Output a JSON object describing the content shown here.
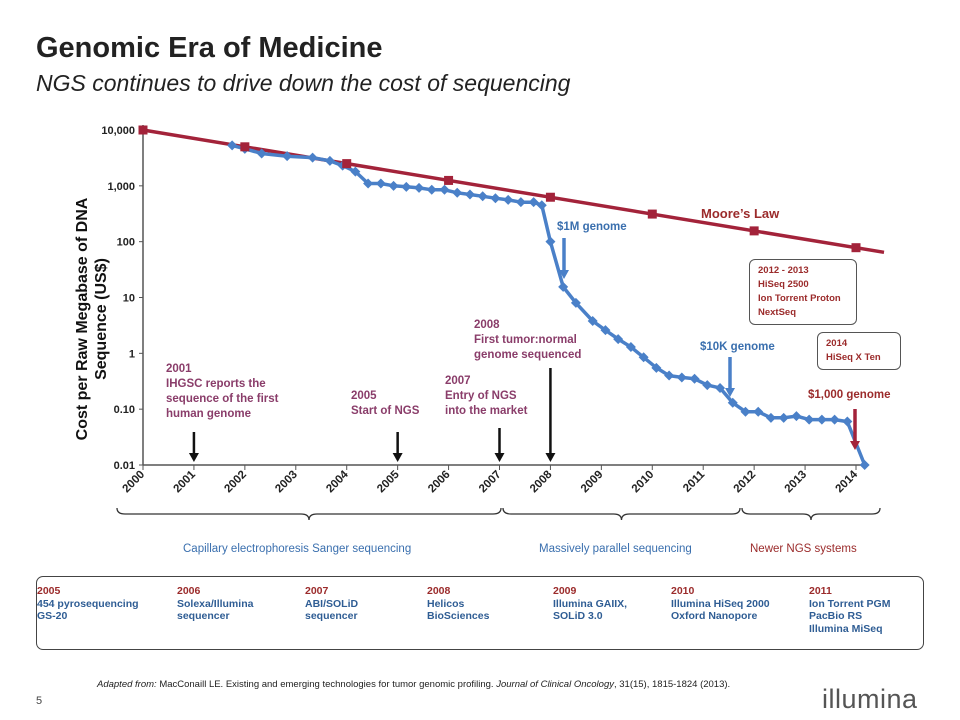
{
  "slide": {
    "title": "Genomic Era of Medicine",
    "subtitle": "NGS continues to drive down the cost of sequencing",
    "page_number": "5",
    "logo_text": "illumina",
    "footer": {
      "prefix": "Adapted from:",
      "text": "MacConaill LE. Existing and emerging technologies for tumor genomic profiling.",
      "journal": "Journal of Clinical Oncology",
      "citation": ", 31(15), 1815-1824 (2013)."
    }
  },
  "chart_data": {
    "type": "line",
    "ylabel": "Cost per Raw Megabase of DNA Sequence (US$)",
    "xlabel": "",
    "y_scale": "log",
    "ylim": [
      0.01,
      10000
    ],
    "xlim": [
      2000,
      2014
    ],
    "y_ticks": [
      "10,000",
      "1,000",
      "100",
      "10",
      "1",
      "0.10",
      "0.01"
    ],
    "y_tick_values": [
      10000,
      1000,
      100,
      10,
      1,
      0.1,
      0.01
    ],
    "x_ticks": [
      "2000",
      "2001",
      "2002",
      "2003",
      "2004",
      "2005",
      "2006",
      "2007",
      "2008",
      "2009",
      "2010",
      "2011",
      "2012",
      "2013",
      "2014"
    ],
    "series": [
      {
        "name": "Moore's Law",
        "color": "#a3233a",
        "marker": "square",
        "x": [
          2000,
          2002,
          2004,
          2006,
          2008,
          2010,
          2012,
          2014
        ],
        "y": [
          10000,
          5000,
          2500,
          1250,
          625,
          312,
          156,
          78
        ]
      },
      {
        "name": "",
        "color": "#4a80c8",
        "marker": "diamond",
        "x": [
          2001.75,
          2002.0,
          2002.33,
          2002.83,
          2003.33,
          2003.67,
          2003.92,
          2004.17,
          2004.42,
          2004.67,
          2004.92,
          2005.17,
          2005.42,
          2005.67,
          2005.92,
          2006.17,
          2006.42,
          2006.67,
          2006.92,
          2007.17,
          2007.42,
          2007.67,
          2007.83,
          2008.0,
          2008.25,
          2008.5,
          2008.83,
          2009.08,
          2009.33,
          2009.58,
          2009.83,
          2010.08,
          2010.33,
          2010.58,
          2010.83,
          2011.08,
          2011.33,
          2011.58,
          2011.83,
          2012.08,
          2012.33,
          2012.58,
          2012.83,
          2013.08,
          2013.33,
          2013.58,
          2013.83,
          2014.17
        ],
        "y": [
          5300,
          4600,
          3800,
          3400,
          3200,
          2800,
          2300,
          1800,
          1100,
          1100,
          1000,
          960,
          920,
          850,
          850,
          750,
          700,
          650,
          600,
          560,
          510,
          510,
          450,
          100,
          15.5,
          8,
          3.8,
          2.6,
          1.8,
          1.3,
          0.85,
          0.55,
          0.4,
          0.37,
          0.35,
          0.27,
          0.24,
          0.13,
          0.09,
          0.09,
          0.07,
          0.07,
          0.075,
          0.065,
          0.065,
          0.065,
          0.06,
          0.01
        ]
      }
    ],
    "annotations": [
      {
        "id": "moores_law",
        "text": "Moore’s Law"
      },
      {
        "id": "a2001",
        "lines": [
          "2001",
          "IHGSC reports the",
          "sequence of the first",
          "human genome"
        ]
      },
      {
        "id": "a2005",
        "lines": [
          "2005",
          "Start of NGS"
        ]
      },
      {
        "id": "a2007",
        "lines": [
          "2007",
          "Entry of NGS",
          "into the market"
        ]
      },
      {
        "id": "a2008",
        "lines": [
          "2008",
          "First tumor:normal",
          "genome sequenced"
        ]
      },
      {
        "id": "m1",
        "text": "$1M genome"
      },
      {
        "id": "k10",
        "text": "$10K genome"
      },
      {
        "id": "k1",
        "text": "$1,000 genome"
      }
    ],
    "boxes": [
      {
        "lines": [
          "2012 - 2013",
          "HiSeq 2500",
          "Ion Torrent Proton",
          "NextSeq"
        ]
      },
      {
        "lines": [
          "2014",
          "HiSeq X Ten"
        ]
      }
    ],
    "eras": [
      {
        "text": "Capillary electrophoresis Sanger sequencing",
        "color": "#3a6fae"
      },
      {
        "text": "Massively parallel sequencing",
        "color": "#3a6fae"
      },
      {
        "text": "Newer NGS systems",
        "color": "#9b2b2b"
      }
    ]
  },
  "timeline": [
    {
      "year": "2005",
      "lines": [
        "454 pyrosequencing",
        "GS-20"
      ]
    },
    {
      "year": "2006",
      "lines": [
        "Solexa/Illumina",
        "sequencer"
      ]
    },
    {
      "year": "2007",
      "lines": [
        "ABI/SOLiD",
        "sequencer"
      ]
    },
    {
      "year": "2008",
      "lines": [
        "Helicos",
        "BioSciences"
      ]
    },
    {
      "year": "2009",
      "lines": [
        "Illumina GAIIX,",
        "SOLiD 3.0"
      ]
    },
    {
      "year": "2010",
      "lines": [
        "Illumina HiSeq 2000",
        "Oxford Nanopore"
      ]
    },
    {
      "year": "2011",
      "lines": [
        "Ion Torrent PGM",
        "PacBio RS",
        "Illumina MiSeq"
      ]
    }
  ]
}
